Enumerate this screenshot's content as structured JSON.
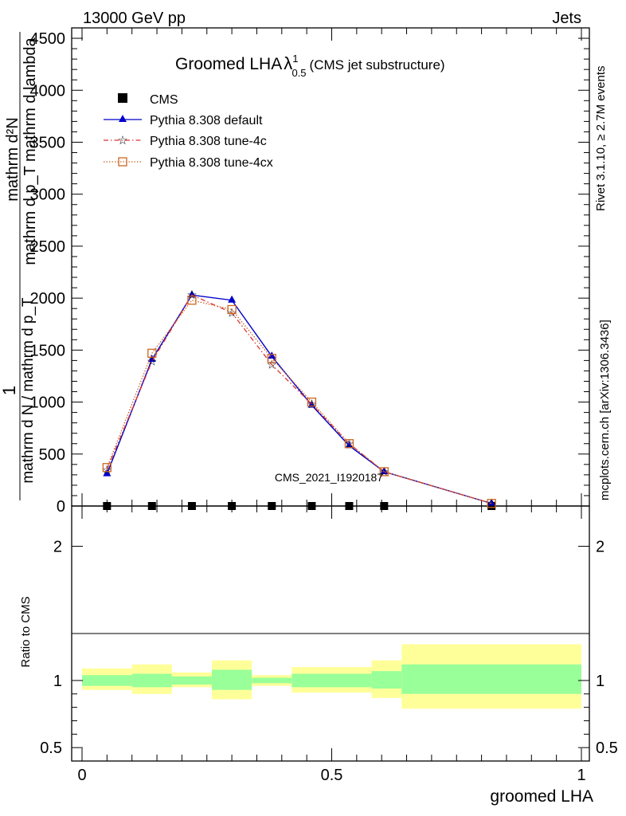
{
  "header": {
    "energy": "13000 GeV pp",
    "category": "Jets"
  },
  "plot_title": {
    "main": "Groomed LHA",
    "lambda": "λ",
    "sup": "1",
    "sub": "0.5",
    "suffix": "(CMS jet substructure)"
  },
  "side_labels": {
    "rivet": "Rivet 3.1.10, ≥ 2.7M events",
    "mcplots": "mcplots.cern.ch [arXiv:1306.3436]"
  },
  "watermark": "CMS_2021_I1920187",
  "ylabel_main": {
    "one": "1",
    "denominator": "mathrm d N / mathrm d p_T",
    "numerator_top": "mathrm d²N",
    "numerator_bottom": "mathrm d p_T  mathrm d lambda"
  },
  "ratio_ylabel": "Ratio to CMS",
  "xlabel": "groomed LHA",
  "legend": [
    {
      "key": "cms",
      "label": "CMS"
    },
    {
      "key": "default",
      "label": "Pythia 8.308 default"
    },
    {
      "key": "tune4c",
      "label": "Pythia 8.308 tune-4c"
    },
    {
      "key": "tune4cx",
      "label": "Pythia 8.308 tune-4cx"
    }
  ],
  "chart_data": {
    "type": "line",
    "xlim": [
      0,
      1
    ],
    "ylim": [
      0,
      4600
    ],
    "ratio_ylim": [
      0.4,
      2.3
    ],
    "x_ticks": [
      "0",
      "0.5",
      "1"
    ],
    "y_ticks": [
      "0",
      "500",
      "1000",
      "1500",
      "2000",
      "2500",
      "3000",
      "3500",
      "4000",
      "4500"
    ],
    "ratio_ticks": [
      "0.5",
      "1",
      "2"
    ],
    "x": [
      0.05,
      0.14,
      0.22,
      0.3,
      0.38,
      0.46,
      0.535,
      0.605,
      0.82
    ],
    "series": [
      {
        "key": "cms",
        "name": "CMS",
        "color": "#000000",
        "values": [
          0,
          0,
          0,
          0,
          0,
          0,
          0,
          0,
          0
        ]
      },
      {
        "key": "default",
        "name": "Pythia 8.308 default",
        "color": "#0000cc",
        "values": [
          310,
          1410,
          2030,
          1980,
          1440,
          970,
          580,
          330,
          25
        ]
      },
      {
        "key": "tune4c",
        "name": "Pythia 8.308 tune-4c",
        "color": "#dd3333",
        "values": [
          350,
          1390,
          2030,
          1860,
          1360,
          980,
          600,
          330,
          25
        ]
      },
      {
        "key": "tune4cx",
        "name": "Pythia 8.308 tune-4cx",
        "color": "#cc6622",
        "values": [
          370,
          1470,
          1980,
          1890,
          1420,
          1000,
          600,
          330,
          25
        ]
      }
    ],
    "ratio_bands": {
      "edges": [
        0,
        0.1,
        0.18,
        0.26,
        0.34,
        0.42,
        0.5,
        0.58,
        0.64,
        1.0
      ],
      "inner": [
        [
          0.96,
          1.04
        ],
        [
          0.95,
          1.05
        ],
        [
          0.97,
          1.03
        ],
        [
          0.93,
          1.08
        ],
        [
          0.98,
          1.02
        ],
        [
          0.95,
          1.05
        ],
        [
          0.95,
          1.05
        ],
        [
          0.94,
          1.07
        ],
        [
          0.9,
          1.12
        ]
      ],
      "outer": [
        [
          0.93,
          1.09
        ],
        [
          0.9,
          1.12
        ],
        [
          0.95,
          1.06
        ],
        [
          0.86,
          1.15
        ],
        [
          0.96,
          1.04
        ],
        [
          0.91,
          1.1
        ],
        [
          0.91,
          1.1
        ],
        [
          0.87,
          1.15
        ],
        [
          0.79,
          1.27
        ]
      ]
    }
  }
}
